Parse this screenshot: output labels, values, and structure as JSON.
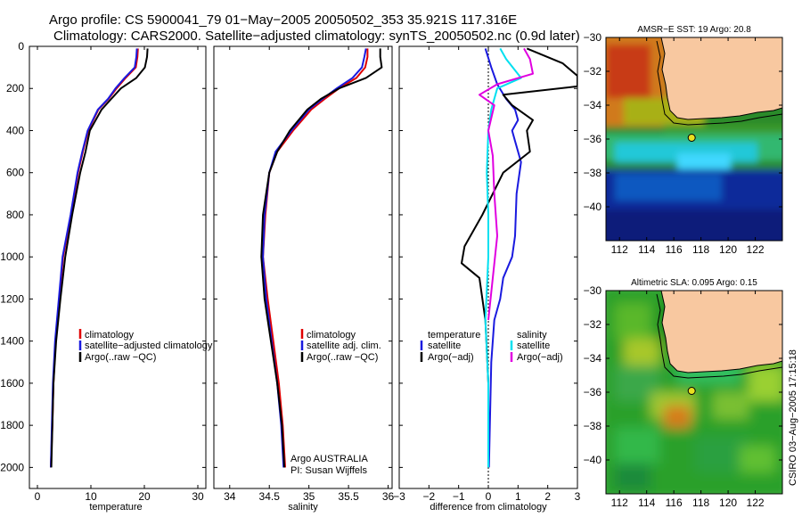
{
  "header": {
    "line1": "Argo profile: CS 5900041_79 01−May−2005 20050502_353 35.921S 117.316E",
    "line2": "Climatology: CARS2000. Satellite−adjusted climatology: synTS_20050502.nc (0.9d later)"
  },
  "colors": {
    "clim": "#e00000",
    "sat": "#1a1adf",
    "argo": "#000000",
    "salt_sat": "#00e0f0",
    "salt_argo": "#e000e0",
    "land": "#f8c8a0"
  },
  "chart_data": [
    {
      "type": "line",
      "id": "temperature",
      "xlabel": "temperature",
      "ylabel": "",
      "xlim": [
        -1.5,
        31.5
      ],
      "ylim": [
        0,
        2100
      ],
      "y_reversed": true,
      "xticks": [
        0,
        10,
        20,
        30
      ],
      "yticks": [
        0,
        200,
        400,
        600,
        800,
        1000,
        1200,
        1400,
        1600,
        1800,
        2000
      ],
      "legend_labels": [
        "climatology",
        "satellite−adjusted climatology",
        "Argo(..raw −QC)"
      ],
      "series": [
        {
          "name": "climatology",
          "color": "#e00000",
          "x": [
            18.8,
            18.7,
            18.4,
            16.5,
            14.8,
            13.3,
            11.4,
            9.5,
            8.5,
            7.6,
            6.3,
            4.8,
            4.1,
            3.4,
            3.0,
            2.8,
            2.5
          ],
          "y": [
            10,
            50,
            100,
            150,
            200,
            250,
            300,
            400,
            500,
            600,
            800,
            1000,
            1200,
            1400,
            1600,
            1800,
            2000
          ]
        },
        {
          "name": "satellite−adjusted climatology",
          "color": "#1a1adf",
          "x": [
            18.6,
            18.5,
            18.2,
            16.3,
            14.6,
            13.2,
            11.3,
            9.4,
            8.4,
            7.5,
            6.2,
            4.7,
            4.0,
            3.3,
            2.9,
            2.7,
            2.5
          ],
          "y": [
            10,
            50,
            100,
            150,
            200,
            250,
            300,
            400,
            500,
            600,
            800,
            1000,
            1200,
            1400,
            1600,
            1800,
            2000
          ]
        },
        {
          "name": "Argo(..raw −QC)",
          "color": "#000000",
          "x": [
            20.6,
            20.5,
            20.1,
            18.5,
            15.6,
            13.8,
            12.0,
            9.8,
            9.0,
            8.0,
            6.5,
            5.2,
            4.3,
            3.5,
            3.0,
            2.8,
            2.6
          ],
          "y": [
            10,
            50,
            100,
            150,
            200,
            250,
            300,
            400,
            500,
            600,
            800,
            1000,
            1200,
            1400,
            1600,
            1800,
            2000
          ]
        }
      ]
    },
    {
      "type": "line",
      "id": "salinity",
      "xlabel": "salinity",
      "ylabel": "",
      "xlim": [
        33.8,
        36.05
      ],
      "ylim": [
        0,
        2100
      ],
      "y_reversed": true,
      "xticks": [
        34,
        34.5,
        35,
        35.5,
        36
      ],
      "yticks": [
        0,
        200,
        400,
        600,
        800,
        1000,
        1200,
        1400,
        1600,
        1800,
        2000
      ],
      "legend_labels": [
        "climatology",
        "satellite adj. clim.",
        "Argo(..raw −QC)"
      ],
      "series": [
        {
          "name": "climatology",
          "color": "#e00000",
          "x": [
            35.74,
            35.74,
            35.71,
            35.6,
            35.38,
            35.2,
            35.03,
            34.8,
            34.6,
            34.5,
            34.45,
            34.42,
            34.48,
            34.55,
            34.62,
            34.67,
            34.7
          ],
          "y": [
            10,
            50,
            100,
            150,
            200,
            250,
            300,
            400,
            500,
            600,
            800,
            1000,
            1200,
            1400,
            1600,
            1800,
            2000
          ]
        },
        {
          "name": "satellite adj. clim.",
          "color": "#1a1adf",
          "x": [
            35.72,
            35.7,
            35.67,
            35.55,
            35.35,
            35.17,
            35.0,
            34.78,
            34.58,
            34.5,
            34.44,
            34.42,
            34.46,
            34.53,
            34.6,
            34.65,
            34.68
          ],
          "y": [
            10,
            50,
            100,
            150,
            200,
            250,
            300,
            400,
            500,
            600,
            800,
            1000,
            1200,
            1400,
            1600,
            1800,
            2000
          ]
        },
        {
          "name": "Argo(..raw −QC)",
          "color": "#000000",
          "x": [
            35.9,
            35.9,
            35.92,
            35.72,
            35.38,
            35.15,
            34.98,
            34.76,
            34.6,
            34.5,
            34.42,
            34.4,
            34.44,
            34.52,
            34.6,
            34.66,
            34.69
          ],
          "y": [
            10,
            50,
            100,
            150,
            200,
            250,
            300,
            400,
            500,
            600,
            800,
            1000,
            1200,
            1400,
            1600,
            1800,
            2000
          ]
        }
      ],
      "annotation": [
        "Argo AUSTRALIA",
        "PI: Susan Wijffels"
      ]
    },
    {
      "type": "line",
      "id": "difference",
      "xlabel": "difference from climatology",
      "ylabel": "",
      "xlim": [
        -3,
        3
      ],
      "ylim": [
        0,
        2100
      ],
      "y_reversed": true,
      "xticks": [
        -3,
        -2,
        -1,
        0,
        1,
        2,
        3
      ],
      "yticks": [
        0,
        200,
        400,
        600,
        800,
        1000,
        1200,
        1400,
        1600,
        1800,
        2000
      ],
      "legend_labels": {
        "left_header": "temperature",
        "left": [
          "satellite",
          "Argo(−adj)"
        ],
        "right_header": "salinity",
        "right": [
          "satellite",
          "Argo(−adj)"
        ]
      },
      "series": [
        {
          "name": "temperature satellite",
          "color": "#1a1adf",
          "x": [
            -0.1,
            0.1,
            0.3,
            0.6,
            0.9,
            1.0,
            0.8,
            0.9,
            1.1,
            0.95,
            0.9,
            0.8,
            0.5,
            0.4,
            0.2,
            0.1,
            0.05,
            0.02
          ],
          "y": [
            10,
            100,
            180,
            250,
            300,
            350,
            400,
            450,
            550,
            700,
            900,
            1000,
            1100,
            1200,
            1300,
            1500,
            1800,
            2000
          ]
        },
        {
          "name": "temperature Argo(−adj)",
          "color": "#000000",
          "x": [
            1.3,
            2.5,
            3.0,
            3.0,
            0.5,
            0.8,
            1.5,
            1.3,
            1.4,
            0.5,
            -0.2,
            -0.8,
            -0.9,
            -0.3,
            -0.1,
            0.0,
            0.0
          ],
          "y": [
            10,
            80,
            140,
            190,
            230,
            280,
            350,
            400,
            500,
            600,
            800,
            950,
            1030,
            1100,
            1300,
            1600,
            2000
          ]
        },
        {
          "name": "salinity satellite",
          "color": "#00e0f0",
          "x": [
            0.4,
            0.6,
            1.1,
            0.3,
            0.1,
            0.0,
            -0.05,
            0.0,
            0.0,
            -0.1,
            0.0,
            0.0
          ],
          "y": [
            10,
            60,
            150,
            200,
            300,
            400,
            600,
            800,
            1000,
            1300,
            1600,
            2000
          ]
        },
        {
          "name": "salinity Argo(−adj)",
          "color": "#e000e0",
          "x": [
            1.2,
            1.4,
            1.5,
            0.3,
            -0.3,
            0.2,
            0.0,
            0.15,
            0.2,
            0.3,
            0.15,
            0.0
          ],
          "y": [
            10,
            60,
            130,
            180,
            230,
            280,
            400,
            520,
            700,
            900,
            1100,
            1300
          ]
        }
      ]
    },
    {
      "type": "heatmap",
      "id": "sst-map",
      "title": "AMSR−E SST: 19 Argo: 20.8",
      "xlim": [
        111,
        124
      ],
      "ylim": [
        -42,
        -30
      ],
      "xticks": [
        112,
        114,
        116,
        118,
        120,
        122
      ],
      "yticks": [
        -30,
        -32,
        -34,
        -36,
        -38,
        -40
      ],
      "float_position": [
        117.316,
        -35.921
      ]
    },
    {
      "type": "heatmap",
      "id": "sla-map",
      "title": "Altimetric SLA: 0.095 Argo: 0.15",
      "xlim": [
        111,
        124
      ],
      "ylim": [
        -42,
        -30
      ],
      "xticks": [
        112,
        114,
        116,
        118,
        120,
        122
      ],
      "yticks": [
        -30,
        -32,
        -34,
        -36,
        -38,
        -40
      ],
      "float_position": [
        117.316,
        -35.921
      ]
    }
  ],
  "credit": "CSIRO 03−Aug−2005 17:15:18"
}
